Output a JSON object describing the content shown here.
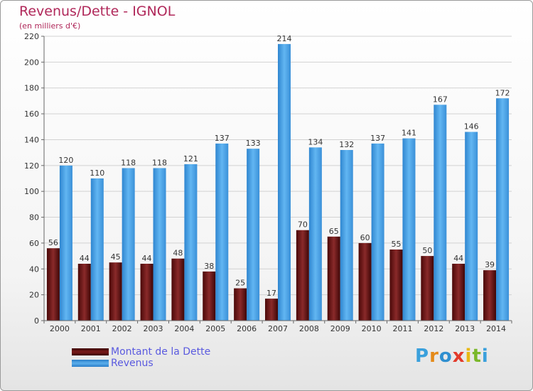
{
  "header": {
    "title": "Revenus/Dette - IGNOL",
    "subtitle": "(en milliers d'€)"
  },
  "chart_data": {
    "type": "bar",
    "title": "Revenus/Dette - IGNOL",
    "subtitle": "(en milliers d'€)",
    "categories": [
      "2000",
      "2001",
      "2002",
      "2003",
      "2004",
      "2005",
      "2006",
      "2007",
      "2008",
      "2009",
      "2010",
      "2011",
      "2012",
      "2013",
      "2014"
    ],
    "series": [
      {
        "name": "Montant de la Dette",
        "values": [
          56,
          44,
          45,
          44,
          48,
          38,
          25,
          17,
          70,
          65,
          60,
          55,
          50,
          44,
          39
        ],
        "color": "#7a1b1b"
      },
      {
        "name": "Revenus",
        "values": [
          120,
          110,
          118,
          118,
          121,
          137,
          133,
          214,
          134,
          132,
          137,
          141,
          167,
          146,
          172
        ],
        "color": "#4a9fe0"
      }
    ],
    "ylim": [
      0,
      220
    ],
    "yticks": [
      0,
      20,
      40,
      60,
      80,
      100,
      120,
      140,
      160,
      180,
      200,
      220
    ],
    "grid": true,
    "legend_position": "bottom-left"
  },
  "legend": {
    "items": [
      {
        "label": "Montant de la Dette",
        "color": "#7a1b1b"
      },
      {
        "label": "Revenus",
        "color": "#4a9fe0"
      }
    ]
  },
  "logo": {
    "letters": [
      "P",
      "r",
      "o",
      "x",
      "i",
      "t",
      "i"
    ],
    "colors": [
      "#3aa0dc",
      "#e48a1a",
      "#2f8fd0",
      "#e23a2a",
      "#e8b812",
      "#7ab82a",
      "#3aa0dc"
    ]
  }
}
